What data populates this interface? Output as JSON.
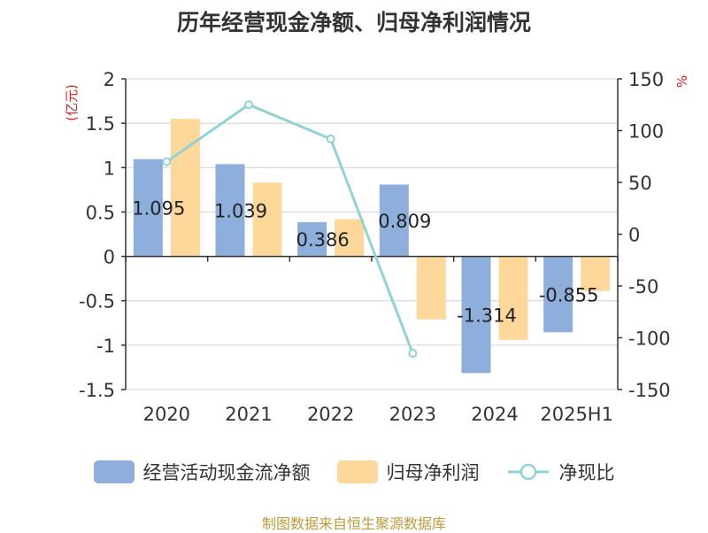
{
  "chart_data": {
    "type": "bar",
    "title": "历年经营现金净额、归母净利润情况",
    "categories": [
      "2020",
      "2021",
      "2022",
      "2023",
      "2024",
      "2025H1"
    ],
    "left_axis": {
      "unit_label": "(亿元)",
      "ylim": [
        -1.5,
        2
      ],
      "ticks": [
        "2",
        "1.5",
        "1",
        "0.5",
        "0",
        "-0.5",
        "-1",
        "-1.5"
      ]
    },
    "right_axis": {
      "unit_label": "%",
      "ylim": [
        -150,
        150
      ],
      "ticks": [
        "150",
        "100",
        "50",
        "0",
        "-50",
        "-100",
        "-150"
      ]
    },
    "series": [
      {
        "name": "经营活动现金流净额",
        "kind": "bar",
        "axis": "left",
        "color": "#8eaedb",
        "values": [
          1.095,
          1.039,
          0.386,
          0.809,
          -1.314,
          -0.855
        ],
        "data_labels": [
          "1.095",
          "1.039",
          "0.386",
          "0.809",
          "-1.314",
          "-0.855"
        ]
      },
      {
        "name": "归母净利润",
        "kind": "bar",
        "axis": "left",
        "color": "#fdd89a",
        "values": [
          1.55,
          0.83,
          0.42,
          -0.71,
          -0.94,
          -0.39
        ]
      },
      {
        "name": "净现比",
        "kind": "line",
        "axis": "right",
        "color": "#8fd3d6",
        "values": [
          70,
          125,
          92,
          -115,
          null,
          null
        ]
      }
    ],
    "grid": true,
    "legend_position": "bottom"
  },
  "source_text": "制图数据来自恒生聚源数据库"
}
